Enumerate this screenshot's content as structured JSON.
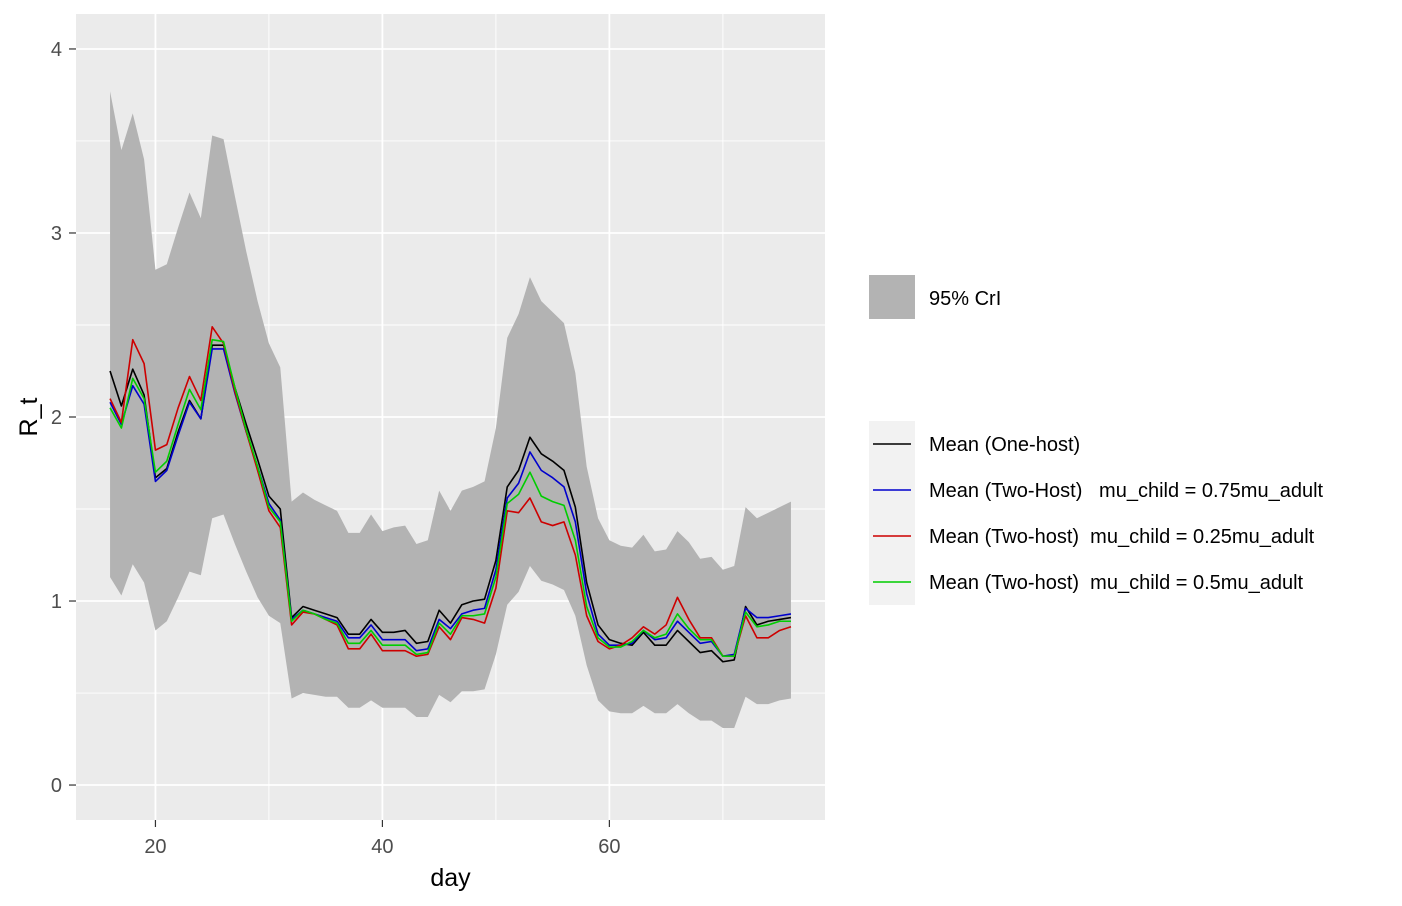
{
  "chart_data": {
    "type": "line",
    "xlabel": "day",
    "ylabel": "R_t",
    "xlim": [
      13,
      79
    ],
    "ylim": [
      -0.19,
      4.19
    ],
    "x_ticks": [
      20,
      40,
      60
    ],
    "y_ticks": [
      0,
      1,
      2,
      3,
      4
    ],
    "grid": true,
    "background": "#ebebeb",
    "legend_position": "right",
    "band": {
      "name": "95% CrI",
      "color": "#b3b3b3",
      "x": [
        16,
        17,
        18,
        19,
        20,
        21,
        22,
        23,
        24,
        25,
        26,
        27,
        28,
        29,
        30,
        31,
        32,
        33,
        34,
        35,
        36,
        37,
        38,
        39,
        40,
        41,
        42,
        43,
        44,
        45,
        46,
        47,
        48,
        49,
        50,
        51,
        52,
        53,
        54,
        55,
        56,
        57,
        58,
        59,
        60,
        61,
        62,
        63,
        64,
        65,
        66,
        67,
        68,
        69,
        70,
        71,
        72,
        73,
        74,
        75,
        76
      ],
      "upper": [
        3.77,
        3.45,
        3.65,
        3.4,
        2.8,
        2.83,
        3.03,
        3.22,
        3.08,
        3.53,
        3.51,
        3.2,
        2.9,
        2.63,
        2.4,
        2.27,
        1.54,
        1.59,
        1.55,
        1.52,
        1.49,
        1.37,
        1.37,
        1.47,
        1.38,
        1.4,
        1.41,
        1.31,
        1.33,
        1.6,
        1.49,
        1.6,
        1.62,
        1.65,
        1.94,
        2.43,
        2.56,
        2.76,
        2.63,
        2.57,
        2.51,
        2.24,
        1.73,
        1.45,
        1.33,
        1.3,
        1.29,
        1.36,
        1.27,
        1.28,
        1.38,
        1.32,
        1.23,
        1.24,
        1.17,
        1.19,
        1.51,
        1.45,
        1.48,
        1.51,
        1.54
      ],
      "lower": [
        1.13,
        1.03,
        1.2,
        1.1,
        0.84,
        0.89,
        1.02,
        1.16,
        1.14,
        1.45,
        1.47,
        1.31,
        1.16,
        1.02,
        0.92,
        0.88,
        0.47,
        0.5,
        0.49,
        0.48,
        0.48,
        0.42,
        0.42,
        0.46,
        0.42,
        0.42,
        0.42,
        0.37,
        0.37,
        0.49,
        0.45,
        0.51,
        0.51,
        0.52,
        0.71,
        0.98,
        1.05,
        1.19,
        1.11,
        1.09,
        1.06,
        0.92,
        0.65,
        0.46,
        0.4,
        0.39,
        0.39,
        0.43,
        0.39,
        0.39,
        0.44,
        0.39,
        0.35,
        0.35,
        0.31,
        0.31,
        0.48,
        0.44,
        0.44,
        0.46,
        0.47
      ]
    },
    "x": [
      16,
      17,
      18,
      19,
      20,
      21,
      22,
      23,
      24,
      25,
      26,
      27,
      28,
      29,
      30,
      31,
      32,
      33,
      34,
      35,
      36,
      37,
      38,
      39,
      40,
      41,
      42,
      43,
      44,
      45,
      46,
      47,
      48,
      49,
      50,
      51,
      52,
      53,
      54,
      55,
      56,
      57,
      58,
      59,
      60,
      61,
      62,
      63,
      64,
      65,
      66,
      67,
      68,
      69,
      70,
      71,
      72,
      73,
      74,
      75,
      76
    ],
    "series": [
      {
        "name": "Mean (One-host)",
        "color": "#000000",
        "values": [
          2.25,
          2.06,
          2.26,
          2.12,
          1.67,
          1.72,
          1.92,
          2.09,
          1.99,
          2.39,
          2.39,
          2.16,
          1.96,
          1.77,
          1.57,
          1.5,
          0.91,
          0.97,
          0.95,
          0.93,
          0.91,
          0.82,
          0.82,
          0.9,
          0.83,
          0.83,
          0.84,
          0.77,
          0.78,
          0.95,
          0.88,
          0.98,
          1.0,
          1.01,
          1.22,
          1.62,
          1.71,
          1.89,
          1.8,
          1.76,
          1.71,
          1.51,
          1.1,
          0.87,
          0.79,
          0.77,
          0.76,
          0.83,
          0.76,
          0.76,
          0.84,
          0.78,
          0.72,
          0.73,
          0.67,
          0.68,
          0.97,
          0.87,
          0.89,
          0.9,
          0.91
        ]
      },
      {
        "name": "Mean (Two-Host)   mu_child = 0.75mu_adult",
        "color": "#0000cd",
        "values": [
          2.08,
          1.96,
          2.17,
          2.07,
          1.65,
          1.71,
          1.9,
          2.08,
          1.99,
          2.37,
          2.37,
          2.13,
          1.92,
          1.73,
          1.53,
          1.44,
          0.9,
          0.95,
          0.93,
          0.91,
          0.89,
          0.8,
          0.8,
          0.87,
          0.79,
          0.79,
          0.79,
          0.73,
          0.74,
          0.9,
          0.85,
          0.93,
          0.95,
          0.96,
          1.17,
          1.56,
          1.64,
          1.81,
          1.71,
          1.67,
          1.62,
          1.43,
          1.04,
          0.82,
          0.76,
          0.76,
          0.77,
          0.84,
          0.79,
          0.8,
          0.89,
          0.83,
          0.77,
          0.78,
          0.7,
          0.71,
          0.96,
          0.91,
          0.91,
          0.92,
          0.93
        ]
      },
      {
        "name": "Mean (Two-host)  mu_child = 0.25mu_adult",
        "color": "#cd0000",
        "values": [
          2.1,
          1.97,
          2.42,
          2.29,
          1.82,
          1.85,
          2.05,
          2.22,
          2.09,
          2.49,
          2.4,
          2.14,
          1.92,
          1.71,
          1.49,
          1.4,
          0.87,
          0.94,
          0.93,
          0.9,
          0.87,
          0.74,
          0.74,
          0.82,
          0.73,
          0.73,
          0.73,
          0.7,
          0.71,
          0.86,
          0.79,
          0.91,
          0.9,
          0.88,
          1.07,
          1.49,
          1.48,
          1.56,
          1.43,
          1.41,
          1.43,
          1.25,
          0.92,
          0.78,
          0.74,
          0.76,
          0.8,
          0.86,
          0.82,
          0.87,
          1.02,
          0.9,
          0.8,
          0.8,
          0.7,
          0.7,
          0.92,
          0.8,
          0.8,
          0.84,
          0.86
        ]
      },
      {
        "name": "Mean (Two-host)  mu_child = 0.5mu_adult",
        "color": "#00cd00",
        "values": [
          2.05,
          1.94,
          2.21,
          2.1,
          1.7,
          1.76,
          1.96,
          2.15,
          2.04,
          2.42,
          2.41,
          2.16,
          1.93,
          1.73,
          1.51,
          1.43,
          0.89,
          0.95,
          0.93,
          0.9,
          0.88,
          0.77,
          0.77,
          0.84,
          0.76,
          0.76,
          0.76,
          0.71,
          0.72,
          0.88,
          0.82,
          0.92,
          0.92,
          0.93,
          1.13,
          1.53,
          1.58,
          1.7,
          1.57,
          1.54,
          1.52,
          1.33,
          0.97,
          0.8,
          0.75,
          0.75,
          0.78,
          0.84,
          0.8,
          0.82,
          0.93,
          0.85,
          0.79,
          0.79,
          0.7,
          0.7,
          0.94,
          0.86,
          0.87,
          0.89,
          0.89
        ]
      }
    ]
  }
}
